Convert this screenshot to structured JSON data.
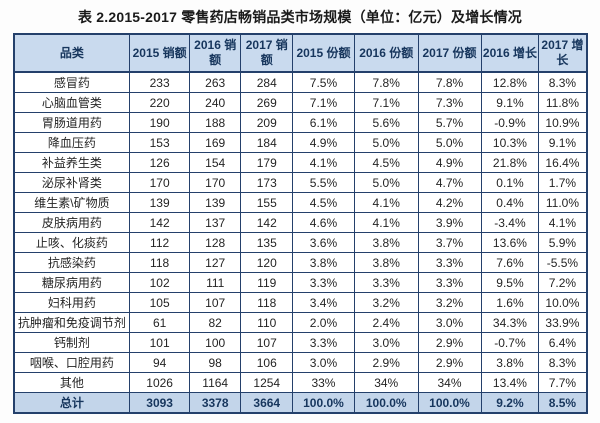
{
  "title": "表 2.2015-2017 零售药店畅销品类市场规模（单位：亿元）及增长情况",
  "colors": {
    "header_bg": "#c9daee",
    "total_row_bg": "#c3d5ea",
    "border": "#24406b",
    "header_text": "#17365d",
    "body_text": "#242424",
    "page_bg": "#fdfdfd"
  },
  "chart_data": {
    "type": "table",
    "title": "表 2.2015-2017 零售药店畅销品类市场规模（单位：亿元）及增长情况",
    "columns": [
      "品类",
      "2015 销额",
      "2016 销额",
      "2017 销额",
      "2015 份额",
      "2016 份额",
      "2017 份额",
      "2016 增长",
      "2017 增长"
    ],
    "rows": [
      [
        "感冒药",
        "233",
        "263",
        "284",
        "7.5%",
        "7.8%",
        "7.8%",
        "12.8%",
        "8.3%"
      ],
      [
        "心脑血管类",
        "220",
        "240",
        "269",
        "7.1%",
        "7.1%",
        "7.3%",
        "9.1%",
        "11.8%"
      ],
      [
        "胃肠道用药",
        "190",
        "188",
        "209",
        "6.1%",
        "5.6%",
        "5.7%",
        "-0.9%",
        "10.9%"
      ],
      [
        "降血压药",
        "153",
        "169",
        "184",
        "4.9%",
        "5.0%",
        "5.0%",
        "10.3%",
        "9.1%"
      ],
      [
        "补益养生类",
        "126",
        "154",
        "179",
        "4.1%",
        "4.5%",
        "4.9%",
        "21.8%",
        "16.4%"
      ],
      [
        "泌尿补肾类",
        "170",
        "170",
        "173",
        "5.5%",
        "5.0%",
        "4.7%",
        "0.1%",
        "1.7%"
      ],
      [
        "维生素\\矿物质",
        "139",
        "139",
        "155",
        "4.5%",
        "4.1%",
        "4.2%",
        "0.4%",
        "11.0%"
      ],
      [
        "皮肤病用药",
        "142",
        "137",
        "142",
        "4.6%",
        "4.1%",
        "3.9%",
        "-3.4%",
        "4.1%"
      ],
      [
        "止咳、化痰药",
        "112",
        "128",
        "135",
        "3.6%",
        "3.8%",
        "3.7%",
        "13.6%",
        "5.9%"
      ],
      [
        "抗感染药",
        "118",
        "127",
        "120",
        "3.8%",
        "3.8%",
        "3.3%",
        "7.6%",
        "-5.5%"
      ],
      [
        "糖尿病用药",
        "102",
        "111",
        "119",
        "3.3%",
        "3.3%",
        "3.3%",
        "9.5%",
        "7.2%"
      ],
      [
        "妇科用药",
        "105",
        "107",
        "118",
        "3.4%",
        "3.2%",
        "3.2%",
        "1.6%",
        "10.0%"
      ],
      [
        "抗肿瘤和免疫调节剂",
        "61",
        "82",
        "110",
        "2.0%",
        "2.4%",
        "3.0%",
        "34.3%",
        "33.9%"
      ],
      [
        "钙制剂",
        "101",
        "100",
        "107",
        "3.3%",
        "3.0%",
        "2.9%",
        "-0.7%",
        "6.4%"
      ],
      [
        "咽喉、口腔用药",
        "94",
        "98",
        "106",
        "3.0%",
        "2.9%",
        "2.9%",
        "3.8%",
        "8.3%"
      ],
      [
        "其他",
        "1026",
        "1164",
        "1254",
        "33%",
        "34%",
        "34%",
        "13.4%",
        "7.7%"
      ]
    ],
    "total_row": [
      "总计",
      "3093",
      "3378",
      "3664",
      "100.0%",
      "100.0%",
      "100.0%",
      "9.2%",
      "8.5%"
    ]
  }
}
